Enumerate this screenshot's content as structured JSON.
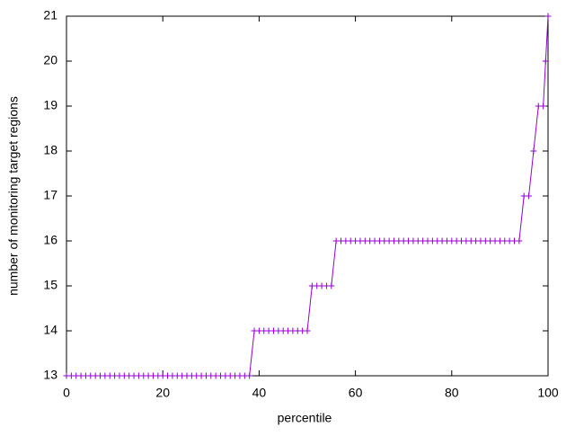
{
  "chart_data": {
    "type": "line",
    "xlabel": "percentile",
    "ylabel": "number of monitoring target regions",
    "x": [
      0,
      1,
      2,
      3,
      4,
      5,
      6,
      7,
      8,
      9,
      10,
      11,
      12,
      13,
      14,
      15,
      16,
      17,
      18,
      19,
      20,
      21,
      22,
      23,
      24,
      25,
      26,
      27,
      28,
      29,
      30,
      31,
      32,
      33,
      34,
      35,
      36,
      37,
      38,
      39,
      40,
      41,
      42,
      43,
      44,
      45,
      46,
      47,
      48,
      49,
      50,
      51,
      52,
      53,
      54,
      55,
      56,
      57,
      58,
      59,
      60,
      61,
      62,
      63,
      64,
      65,
      66,
      67,
      68,
      69,
      70,
      71,
      72,
      73,
      74,
      75,
      76,
      77,
      78,
      79,
      80,
      81,
      82,
      83,
      84,
      85,
      86,
      87,
      88,
      89,
      90,
      91,
      92,
      93,
      94,
      95,
      96,
      97,
      98,
      99,
      99.5,
      100
    ],
    "series": [
      {
        "color": "#9400d3",
        "marker": "+",
        "values": [
          13,
          13,
          13,
          13,
          13,
          13,
          13,
          13,
          13,
          13,
          13,
          13,
          13,
          13,
          13,
          13,
          13,
          13,
          13,
          13,
          13,
          13,
          13,
          13,
          13,
          13,
          13,
          13,
          13,
          13,
          13,
          13,
          13,
          13,
          13,
          13,
          13,
          13,
          13,
          14,
          14,
          14,
          14,
          14,
          14,
          14,
          14,
          14,
          14,
          14,
          14,
          15,
          15,
          15,
          15,
          15,
          16,
          16,
          16,
          16,
          16,
          16,
          16,
          16,
          16,
          16,
          16,
          16,
          16,
          16,
          16,
          16,
          16,
          16,
          16,
          16,
          16,
          16,
          16,
          16,
          16,
          16,
          16,
          16,
          16,
          16,
          16,
          16,
          16,
          16,
          16,
          16,
          16,
          16,
          16,
          17,
          17,
          18,
          19,
          19,
          20,
          21
        ]
      }
    ],
    "xlim": [
      0,
      100
    ],
    "xticks": [
      0,
      20,
      40,
      60,
      80,
      100
    ],
    "ylim": [
      13,
      21
    ],
    "yticks": [
      13,
      14,
      15,
      16,
      17,
      18,
      19,
      20,
      21
    ]
  }
}
